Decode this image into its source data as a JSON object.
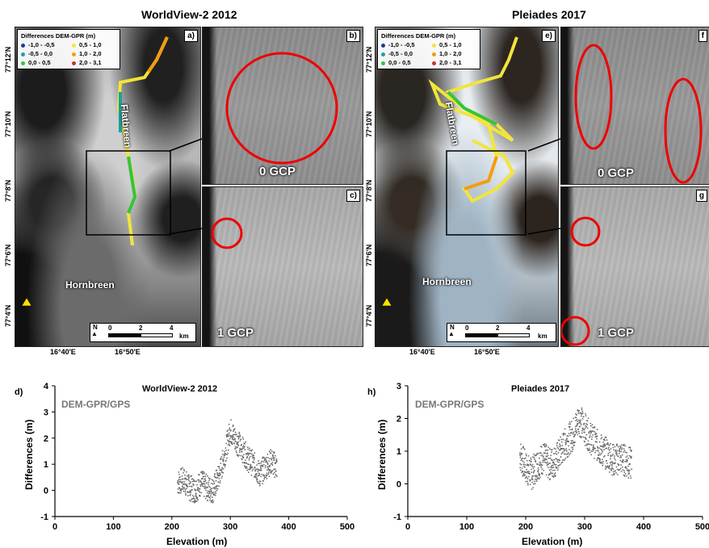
{
  "titles": {
    "left": "WorldView-2 2012",
    "right": "Pleiades 2017"
  },
  "panel_labels": {
    "a": "a)",
    "b": "b)",
    "c": "c)",
    "e": "e)",
    "f": "f",
    "g": "g"
  },
  "gcp_labels": {
    "b": "0 GCP",
    "c": "1 GCP",
    "f": "0 GCP",
    "g": "1 GCP"
  },
  "glaciers": {
    "flat": "Flatbreen",
    "horn": "Hornbreen"
  },
  "legend": {
    "title": "Differences DEM-GPR (m)",
    "items": [
      {
        "label": "-1,0 - -0,5",
        "color": "#1f3a93"
      },
      {
        "label": "0,5 - 1,0",
        "color": "#f2e53a"
      },
      {
        "label": "-0,5 - 0,0",
        "color": "#1aa39a"
      },
      {
        "label": "1,0 - 2,0",
        "color": "#f39c12"
      },
      {
        "label": "0,0 - 0,5",
        "color": "#35c43a"
      },
      {
        "label": "2,0 - 3,1",
        "color": "#c0392b"
      }
    ]
  },
  "lat_labels": [
    "77°12'N",
    "77°10'N",
    "77°8'N",
    "77°6'N",
    "77°4'N"
  ],
  "lon_labels": [
    "16°40'E",
    "16°50'E"
  ],
  "scale": {
    "ticks": [
      "0",
      "2",
      "4"
    ],
    "unit": "km",
    "north": "N"
  },
  "charts": {
    "d": {
      "tag": "d)",
      "title": "WorldView-2 2012",
      "series": "DEM-GPR/GPS"
    },
    "h": {
      "tag": "h)",
      "title": "Pleiades 2017",
      "series": "DEM-GPR/GPS"
    },
    "xlabel": "Elevation (m)",
    "ylabel": "Differences (m)",
    "xticks": [
      "0",
      "100",
      "200",
      "300",
      "400",
      "500"
    ],
    "yticks_d": [
      "4",
      "3",
      "2",
      "1",
      "0",
      "-1"
    ],
    "yticks_h": [
      "3",
      "2",
      "1",
      "0",
      "-1"
    ]
  },
  "chart_data": [
    {
      "type": "scatter",
      "title": "WorldView-2 2012",
      "xlabel": "Elevation (m)",
      "ylabel": "Differences (m)",
      "xlim": [
        0,
        500
      ],
      "ylim": [
        -1,
        4
      ],
      "series": [
        {
          "name": "DEM-GPR/GPS",
          "x": [
            210,
            220,
            230,
            240,
            250,
            260,
            270,
            280,
            290,
            300,
            310,
            320,
            330,
            340,
            350,
            360,
            370,
            380
          ],
          "y": [
            0.3,
            0.4,
            0.1,
            0.0,
            0.3,
            0.1,
            0.0,
            0.5,
            1.3,
            2.3,
            1.9,
            1.6,
            1.2,
            1.0,
            0.6,
            0.9,
            1.1,
            0.9
          ]
        }
      ]
    },
    {
      "type": "scatter",
      "title": "Pleiades 2017",
      "xlabel": "Elevation (m)",
      "ylabel": "Differences (m)",
      "xlim": [
        0,
        500
      ],
      "ylim": [
        -1,
        3
      ],
      "series": [
        {
          "name": "DEM-GPR/GPS",
          "x": [
            190,
            200,
            210,
            220,
            230,
            240,
            250,
            260,
            270,
            280,
            290,
            300,
            310,
            320,
            330,
            340,
            350,
            360,
            370,
            380
          ],
          "y": [
            0.9,
            0.5,
            0.3,
            0.6,
            0.8,
            0.6,
            0.7,
            1.0,
            1.3,
            1.5,
            2.0,
            1.7,
            1.4,
            1.2,
            1.0,
            0.9,
            0.7,
            0.8,
            0.7,
            0.6
          ]
        }
      ]
    }
  ]
}
